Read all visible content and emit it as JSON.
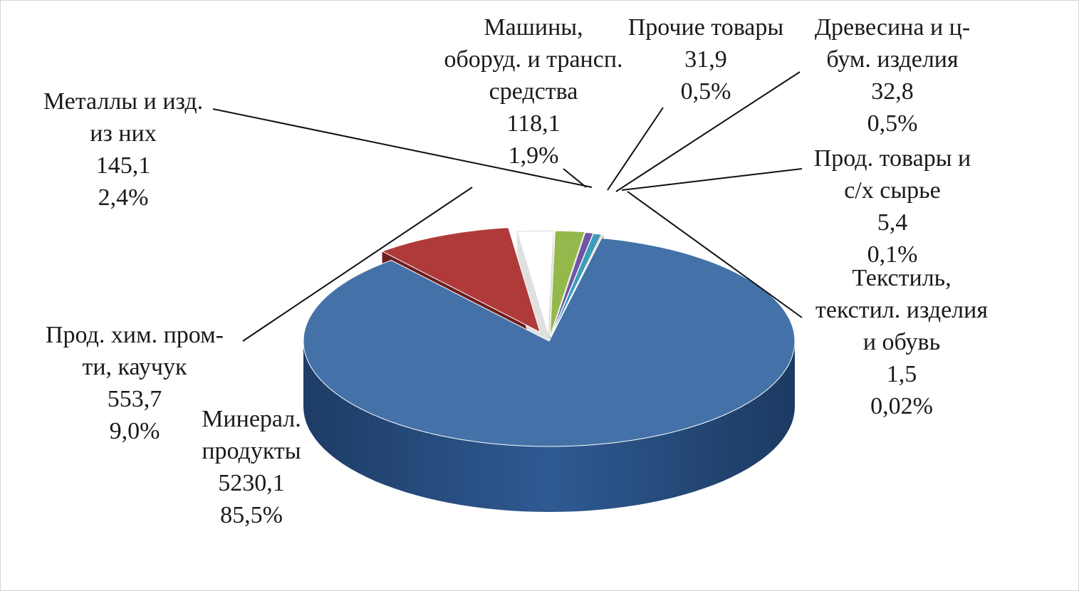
{
  "chart_data": {
    "type": "pie",
    "title": "",
    "slices": [
      {
        "name": "Минерал. продукты",
        "lines": [
          "Минерал.",
          "продукты"
        ],
        "value": 5230.1,
        "value_label": "5230,1",
        "percent_label": "85,5%",
        "color": "#4472a8"
      },
      {
        "name": "Прод. хим. пром-ти, каучук",
        "lines": [
          "Прод. хим. пром-",
          "ти, каучук"
        ],
        "value": 553.7,
        "value_label": "553,7",
        "percent_label": "9,0%",
        "color": "#b03a3a"
      },
      {
        "name": "Металлы и изд. из них",
        "lines": [
          "Металлы и изд.",
          "из них"
        ],
        "value": 145.1,
        "value_label": "145,1",
        "percent_label": "2,4%",
        "color": "#ffffff"
      },
      {
        "name": "Машины, оборуд. и трансп. средства",
        "lines": [
          "Машины,",
          "оборуд. и трансп.",
          "средства"
        ],
        "value": 118.1,
        "value_label": "118,1",
        "percent_label": "1,9%",
        "color": "#94b84b"
      },
      {
        "name": "Прочие товары",
        "lines": [
          "Прочие товары"
        ],
        "value": 31.9,
        "value_label": "31,9",
        "percent_label": "0,5%",
        "color": "#7154a6"
      },
      {
        "name": "Древесина и ц-бум. изделия",
        "lines": [
          "Древесина и ц-",
          "бум. изделия"
        ],
        "value": 32.8,
        "value_label": "32,8",
        "percent_label": "0,5%",
        "color": "#3b9db8"
      },
      {
        "name": "Прод. товары и с/х сырье",
        "lines": [
          "Прод. товары и",
          "с/х сырье"
        ],
        "value": 5.4,
        "value_label": "5,4",
        "percent_label": "0,1%",
        "color": "#f08a2e"
      },
      {
        "name": "Текстиль, текстил. изделия и обувь",
        "lines": [
          "Текстиль,",
          "текстил. изделия",
          "и обувь"
        ],
        "value": 1.5,
        "value_label": "1,5",
        "percent_label": "0,02%",
        "color": "#c97a72"
      }
    ]
  }
}
